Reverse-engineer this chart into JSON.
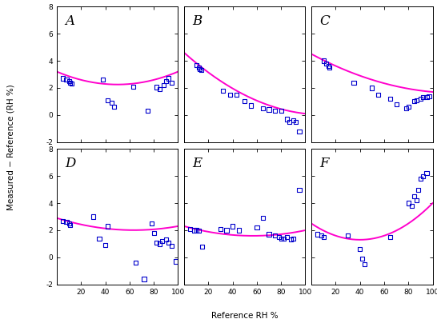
{
  "panels": [
    "A",
    "B",
    "C",
    "D",
    "E",
    "F"
  ],
  "scatter_color": "#0000CC",
  "curve_color": "#FF00CC",
  "background_color": "#FFFFFF",
  "ylim": [
    -2,
    8
  ],
  "xlim": [
    0,
    100
  ],
  "yticks": [
    -2,
    0,
    2,
    4,
    6,
    8
  ],
  "xticks": [
    0,
    20,
    40,
    60,
    80,
    100
  ],
  "ylabel": "Measured − Reference (RH %)",
  "xlabel": "Reference RH %",
  "scatter_data": {
    "A": {
      "x": [
        5,
        8,
        10,
        11,
        12,
        38,
        42,
        45,
        47,
        63,
        75,
        82,
        85,
        88,
        90,
        92,
        95
      ],
      "y": [
        2.7,
        2.6,
        2.5,
        2.4,
        2.3,
        2.6,
        1.1,
        0.9,
        0.6,
        2.1,
        0.3,
        2.05,
        1.9,
        2.2,
        2.5,
        2.7,
        2.4
      ]
    },
    "B": {
      "x": [
        10,
        12,
        13,
        14,
        32,
        38,
        43,
        50,
        55,
        65,
        70,
        75,
        80,
        85,
        87,
        90,
        92,
        95
      ],
      "y": [
        3.7,
        3.5,
        3.4,
        3.3,
        1.8,
        1.5,
        1.5,
        1.0,
        0.7,
        0.5,
        0.4,
        0.3,
        0.3,
        -0.3,
        -0.5,
        -0.4,
        -0.5,
        -1.2
      ]
    },
    "C": {
      "x": [
        10,
        12,
        14,
        15,
        35,
        50,
        55,
        65,
        70,
        78,
        80,
        85,
        87,
        90,
        92,
        95,
        97
      ],
      "y": [
        4.0,
        3.8,
        3.6,
        3.5,
        2.4,
        2.0,
        1.5,
        1.2,
        0.8,
        0.5,
        0.6,
        1.0,
        1.1,
        1.2,
        1.3,
        1.3,
        1.4
      ]
    },
    "D": {
      "x": [
        5,
        8,
        10,
        11,
        30,
        35,
        40,
        42,
        65,
        72,
        78,
        80,
        82,
        85,
        87,
        90,
        92,
        95,
        98
      ],
      "y": [
        2.7,
        2.6,
        2.5,
        2.4,
        3.0,
        1.4,
        0.9,
        2.3,
        -0.4,
        -1.6,
        2.5,
        1.8,
        1.1,
        1.0,
        1.2,
        1.3,
        1.1,
        0.85,
        -0.3
      ]
    },
    "E": {
      "x": [
        5,
        8,
        10,
        12,
        15,
        30,
        35,
        40,
        45,
        60,
        65,
        70,
        75,
        78,
        80,
        82,
        85,
        88,
        90,
        95
      ],
      "y": [
        2.1,
        2.0,
        2.0,
        1.95,
        0.8,
        2.1,
        2.0,
        2.3,
        2.0,
        2.2,
        2.9,
        1.7,
        1.6,
        1.5,
        1.4,
        1.4,
        1.5,
        1.3,
        1.4,
        5.0
      ]
    },
    "F": {
      "x": [
        5,
        8,
        10,
        30,
        40,
        42,
        44,
        65,
        80,
        83,
        85,
        87,
        88,
        90,
        92,
        95
      ],
      "y": [
        1.7,
        1.6,
        1.5,
        1.6,
        0.6,
        -0.1,
        -0.5,
        1.5,
        4.0,
        3.8,
        4.5,
        4.2,
        5.0,
        5.8,
        6.0,
        6.2
      ]
    }
  },
  "curve_params": {
    "A": {
      "a": 3.2,
      "b": -0.038,
      "c": 0.00038
    },
    "B": {
      "a": 4.6,
      "b": -0.08,
      "c": 0.00035
    },
    "C": {
      "a": 4.5,
      "b": -0.048,
      "c": 0.0002
    },
    "D": {
      "a": 2.9,
      "b": -0.028,
      "c": 0.00022
    },
    "E": {
      "a": 2.3,
      "b": -0.025,
      "c": 0.00022
    },
    "F": {
      "a": 2.5,
      "b": -0.06,
      "c": 0.00075
    }
  }
}
